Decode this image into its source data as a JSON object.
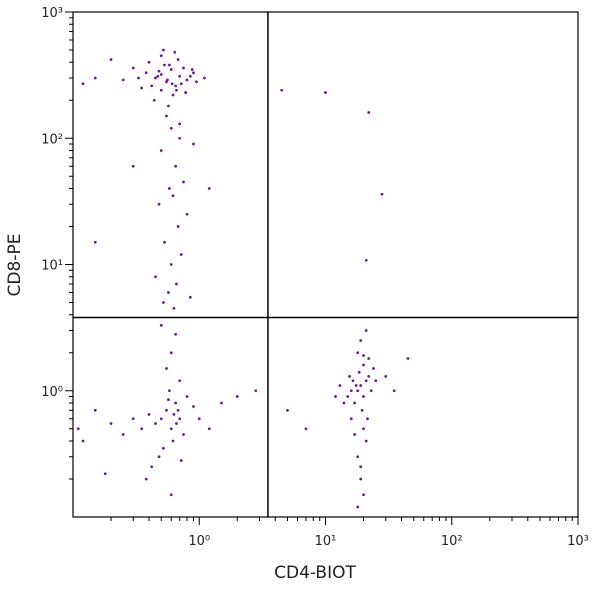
{
  "chart_data": {
    "type": "scatter",
    "x_label": "CD4-BIOT",
    "y_label": "CD8-PE",
    "log_x": true,
    "log_y": true,
    "color": "#6a1b8f",
    "xlim": [
      0.1,
      1000
    ],
    "ylim": [
      0.1,
      1000
    ],
    "xticks": [
      {
        "value": 1,
        "label": "10⁰"
      },
      {
        "value": 10,
        "label": "10¹"
      },
      {
        "value": 100,
        "label": "10²"
      },
      {
        "value": 1000,
        "label": "10³"
      }
    ],
    "yticks": [
      {
        "value": 1,
        "label": "10⁰"
      },
      {
        "value": 10,
        "label": "10¹"
      },
      {
        "value": 100,
        "label": "10²"
      },
      {
        "value": 1000,
        "label": "10³"
      }
    ],
    "xminorticks": [
      0.2,
      0.3,
      0.4,
      0.5,
      0.6,
      0.7,
      0.8,
      0.9,
      2,
      3,
      4,
      5,
      6,
      7,
      8,
      9,
      20,
      30,
      40,
      50,
      60,
      70,
      80,
      90,
      200,
      300,
      400,
      500,
      600,
      700,
      800,
      900
    ],
    "yminorticks": [
      0.2,
      0.3,
      0.4,
      0.5,
      0.6,
      0.7,
      0.8,
      0.9,
      2,
      3,
      4,
      5,
      6,
      7,
      8,
      9,
      20,
      30,
      40,
      50,
      60,
      70,
      80,
      90,
      200,
      300,
      400,
      500,
      600,
      700,
      800,
      900
    ],
    "gates": {
      "x": 3.5,
      "y": 3.8
    },
    "x": [
      0.45,
      0.5,
      0.55,
      0.6,
      0.65,
      0.7,
      0.4,
      0.35,
      0.8,
      0.9,
      0.5,
      0.62,
      0.58,
      0.72,
      0.48,
      0.3,
      0.25,
      0.2,
      0.15,
      0.12,
      0.52,
      0.66,
      0.75,
      0.85,
      0.95,
      1.1,
      0.44,
      0.38,
      0.68,
      0.56,
      0.61,
      0.47,
      0.53,
      0.78,
      0.33,
      0.42,
      0.88,
      0.64,
      0.57,
      0.5,
      0.55,
      0.6,
      0.7,
      0.5,
      0.65,
      0.75,
      0.58,
      0.62,
      0.48,
      0.8,
      0.68,
      0.53,
      0.72,
      0.6,
      0.45,
      0.66,
      0.57,
      0.85,
      0.52,
      0.63,
      0.3,
      0.15,
      1.2,
      0.9,
      0.7,
      0.5,
      0.55,
      0.6,
      0.65,
      0.7,
      0.45,
      0.4,
      0.75,
      0.8,
      0.58,
      0.62,
      0.52,
      0.68,
      0.48,
      0.35,
      0.3,
      0.25,
      0.2,
      0.15,
      0.12,
      0.9,
      1,
      1.2,
      1.5,
      2,
      0.55,
      0.6,
      0.65,
      0.5,
      0.7,
      0.42,
      0.38,
      0.72,
      0.6,
      0.57,
      0.63,
      0.18,
      0.11,
      2.8,
      0.66,
      18,
      19,
      20,
      21,
      17,
      16,
      22,
      15,
      18.5,
      19.5,
      20,
      17.5,
      21.5,
      16.5,
      23,
      14,
      13,
      24,
      18,
      19,
      20,
      21,
      17,
      22,
      15.5,
      18,
      19,
      20,
      16,
      21,
      25,
      12,
      30,
      35,
      45,
      5,
      7,
      18,
      19,
      20,
      22,
      10,
      28,
      21,
      4.5
    ],
    "y": [
      300,
      320,
      280,
      350,
      260,
      310,
      400,
      250,
      290,
      330,
      450,
      220,
      380,
      270,
      340,
      360,
      290,
      420,
      300,
      270,
      500,
      240,
      360,
      310,
      280,
      300,
      200,
      330,
      420,
      290,
      270,
      310,
      380,
      230,
      300,
      260,
      350,
      480,
      180,
      240,
      150,
      120,
      100,
      80,
      60,
      45,
      40,
      35,
      30,
      25,
      20,
      15,
      12,
      10,
      8,
      7,
      6,
      5.5,
      5,
      4.5,
      60,
      15,
      40,
      90,
      130,
      0.6,
      0.7,
      0.5,
      0.8,
      0.6,
      0.55,
      0.65,
      0.45,
      0.9,
      1,
      0.4,
      0.35,
      0.7,
      0.3,
      0.5,
      0.6,
      0.45,
      0.55,
      0.7,
      0.4,
      0.75,
      0.6,
      0.5,
      0.8,
      0.9,
      1.5,
      2,
      2.8,
      3.3,
      1.2,
      0.25,
      0.2,
      0.28,
      0.15,
      0.85,
      0.65,
      0.22,
      0.5,
      1,
      0.55,
      1,
      1.1,
      0.9,
      1.2,
      0.8,
      1,
      1.3,
      0.9,
      1.4,
      0.7,
      1.6,
      1.1,
      0.6,
      1.2,
      1,
      0.8,
      1.1,
      1.5,
      2,
      2.5,
      0.5,
      0.4,
      0.45,
      1.8,
      1.3,
      0.3,
      0.2,
      0.15,
      0.6,
      3,
      1.2,
      0.9,
      1.3,
      1,
      1.8,
      0.7,
      0.5,
      0.12,
      0.25,
      1.9,
      160,
      230,
      36,
      10.8,
      240
    ]
  }
}
